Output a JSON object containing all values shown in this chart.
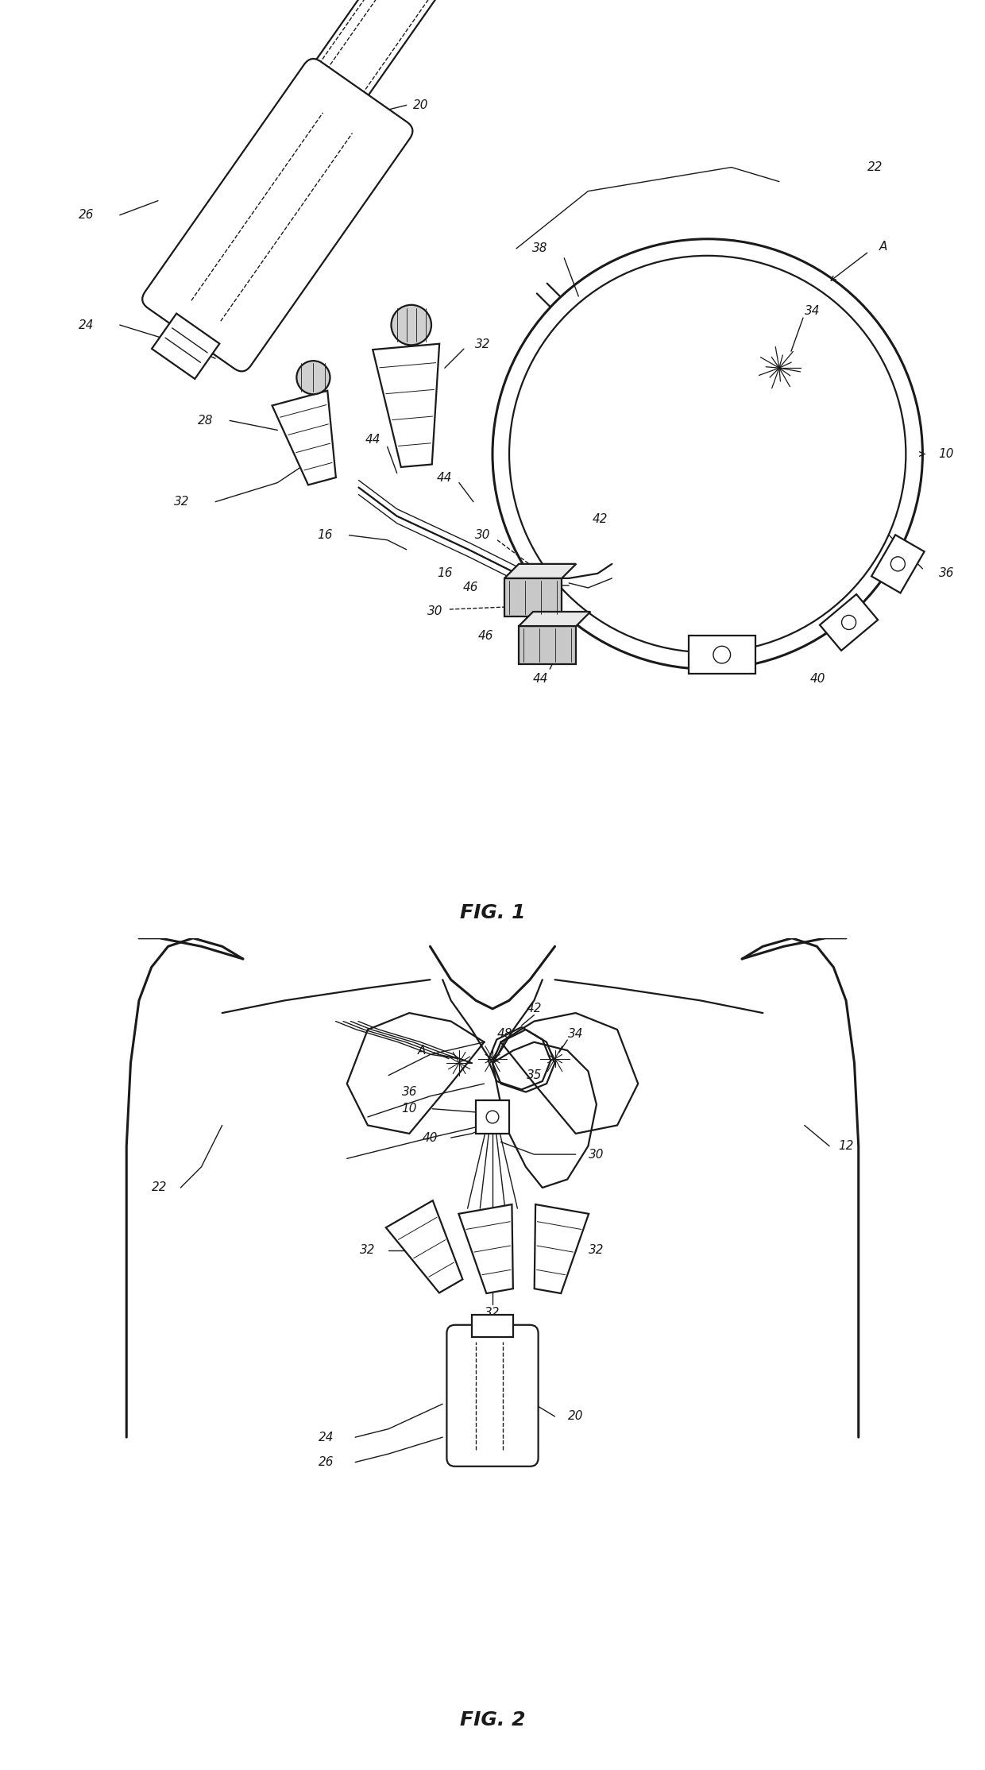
{
  "fig1_title": "FIG. 1",
  "fig2_title": "FIG. 2",
  "bg": "#ffffff",
  "lc": "#1a1a1a",
  "fs": 11,
  "fs_title": 18,
  "lw": 1.6,
  "lw_thick": 2.2,
  "lw_thin": 1.0
}
